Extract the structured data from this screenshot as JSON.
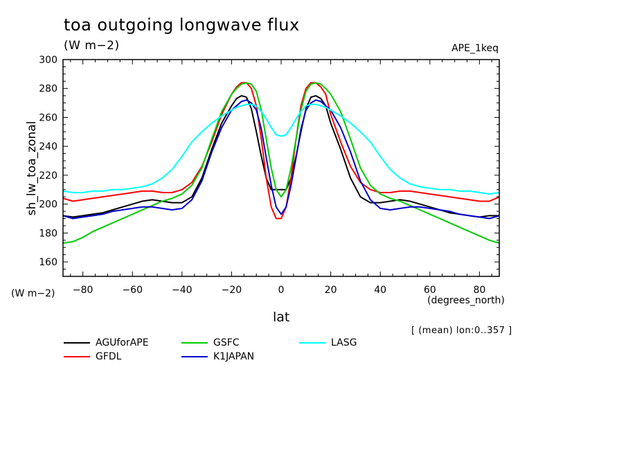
{
  "chart_data": {
    "type": "line",
    "title": "toa outgoing longwave flux",
    "units": "(W m−2)",
    "experiment": "APE_1keq",
    "ylabel": "sh_lw_toa_zonal",
    "yunit": "(W m−2)",
    "xlabel": "lat",
    "xunit": "(degrees_north)",
    "region_note": "[ (mean) lon:0..357 ]",
    "xlim": [
      -88,
      88
    ],
    "ylim": [
      150,
      300
    ],
    "xticks": [
      -80,
      -60,
      -40,
      -20,
      0,
      20,
      40,
      60,
      80
    ],
    "yticks": [
      160,
      180,
      200,
      220,
      240,
      260,
      280,
      300
    ],
    "xticklabels": [
      "−80",
      "−60",
      "−40",
      "−20",
      "0",
      "20",
      "40",
      "60",
      "80"
    ],
    "yticklabels": [
      "160",
      "180",
      "200",
      "220",
      "240",
      "260",
      "280",
      "300"
    ],
    "x": [
      -88,
      -84,
      -80,
      -76,
      -72,
      -68,
      -64,
      -60,
      -56,
      -52,
      -48,
      -44,
      -40,
      -36,
      -32,
      -28,
      -24,
      -20,
      -18,
      -16,
      -14,
      -12,
      -10,
      -8,
      -6,
      -4,
      -2,
      0,
      2,
      4,
      6,
      8,
      10,
      12,
      14,
      16,
      18,
      20,
      24,
      28,
      32,
      36,
      40,
      44,
      48,
      52,
      56,
      60,
      64,
      68,
      72,
      76,
      80,
      84,
      88
    ],
    "series": [
      {
        "name": "AGUforAPE",
        "color": "#000000",
        "values": [
          192,
          191,
          192,
          193,
          194,
          196,
          198,
          200,
          202,
          203,
          202,
          201,
          201,
          205,
          218,
          238,
          256,
          268,
          273,
          275,
          274,
          266,
          250,
          233,
          218,
          210,
          210,
          210,
          210,
          218,
          233,
          250,
          266,
          274,
          275,
          273,
          268,
          256,
          238,
          218,
          205,
          201,
          201,
          202,
          203,
          202,
          200,
          198,
          196,
          194,
          193,
          192,
          191,
          192,
          192
        ]
      },
      {
        "name": "GFDL",
        "color": "#ff0000",
        "values": [
          204,
          202,
          203,
          204,
          205,
          206,
          207,
          208,
          209,
          209,
          208,
          208,
          210,
          215,
          226,
          243,
          262,
          276,
          281,
          284,
          284,
          280,
          268,
          245,
          218,
          198,
          190,
          190,
          198,
          218,
          245,
          268,
          280,
          284,
          284,
          281,
          276,
          262,
          243,
          226,
          215,
          210,
          208,
          208,
          209,
          209,
          208,
          207,
          206,
          205,
          204,
          203,
          202,
          202,
          205
        ]
      },
      {
        "name": "GSFC",
        "color": "#00cc00",
        "values": [
          173,
          174,
          177,
          181,
          184,
          187,
          190,
          193,
          196,
          199,
          202,
          204,
          207,
          213,
          225,
          245,
          264,
          276,
          280,
          283,
          284,
          283,
          278,
          265,
          245,
          225,
          210,
          205,
          210,
          225,
          245,
          265,
          278,
          283,
          284,
          283,
          280,
          276,
          264,
          245,
          225,
          213,
          207,
          204,
          202,
          199,
          196,
          193,
          190,
          187,
          184,
          181,
          178,
          175,
          173
        ]
      },
      {
        "name": "K1JAPAN",
        "color": "#0000cc",
        "values": [
          192,
          190,
          191,
          192,
          193,
          195,
          196,
          197,
          198,
          198,
          197,
          196,
          197,
          203,
          216,
          236,
          253,
          265,
          268,
          271,
          272,
          270,
          265,
          252,
          232,
          213,
          198,
          193,
          198,
          213,
          232,
          252,
          265,
          270,
          272,
          271,
          268,
          265,
          253,
          236,
          216,
          203,
          197,
          196,
          197,
          198,
          198,
          197,
          196,
          195,
          193,
          192,
          191,
          190,
          192
        ]
      },
      {
        "name": "LASG",
        "color": "#00ffff",
        "values": [
          209,
          208,
          208,
          209,
          209,
          210,
          210,
          211,
          212,
          214,
          218,
          224,
          233,
          243,
          250,
          256,
          261,
          265,
          267,
          268,
          269,
          269,
          268,
          264,
          259,
          253,
          248,
          247,
          248,
          253,
          259,
          264,
          268,
          269,
          269,
          268,
          267,
          265,
          261,
          256,
          250,
          243,
          233,
          224,
          218,
          214,
          212,
          211,
          210,
          210,
          209,
          209,
          208,
          207,
          208
        ]
      }
    ],
    "legend": {
      "position": "bottom-left",
      "columns": 3,
      "order": [
        "AGUforAPE",
        "GSFC",
        "LASG",
        "GFDL",
        "K1JAPAN"
      ]
    },
    "grid": false
  }
}
